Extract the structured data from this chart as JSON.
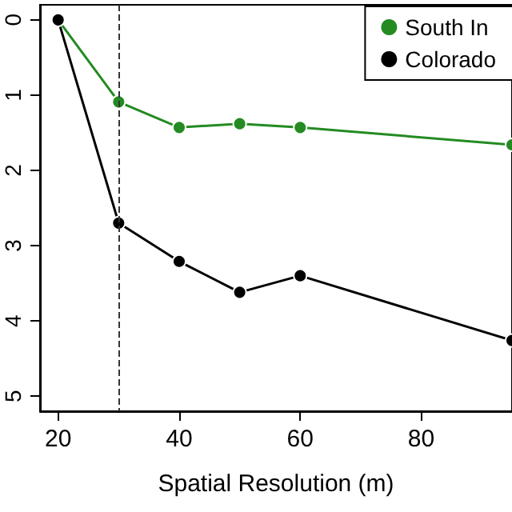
{
  "chart_data": {
    "type": "line",
    "xlabel": "Spatial Resolution (m)",
    "x": [
      20,
      30,
      40,
      50,
      60,
      95
    ],
    "series": [
      {
        "name": "South In",
        "color": "#238b22",
        "values": [
          0,
          1.09,
          1.43,
          1.38,
          1.43,
          1.66
        ]
      },
      {
        "name": "Colorado",
        "color": "#000000",
        "values": [
          0,
          2.7,
          3.21,
          3.62,
          3.4,
          4.26
        ]
      }
    ],
    "xlim": [
      17,
      95
    ],
    "xticks": [
      20,
      40,
      60,
      80
    ],
    "ylim": [
      5.2,
      -0.2
    ],
    "yticks": [
      0,
      1,
      2,
      3,
      4,
      5
    ],
    "ref_lines": [
      {
        "axis": "x",
        "value": 30,
        "line_style": "dashed",
        "color": "#333333"
      }
    ],
    "legend": "top right",
    "marker": "circle",
    "line_style": "solid"
  }
}
